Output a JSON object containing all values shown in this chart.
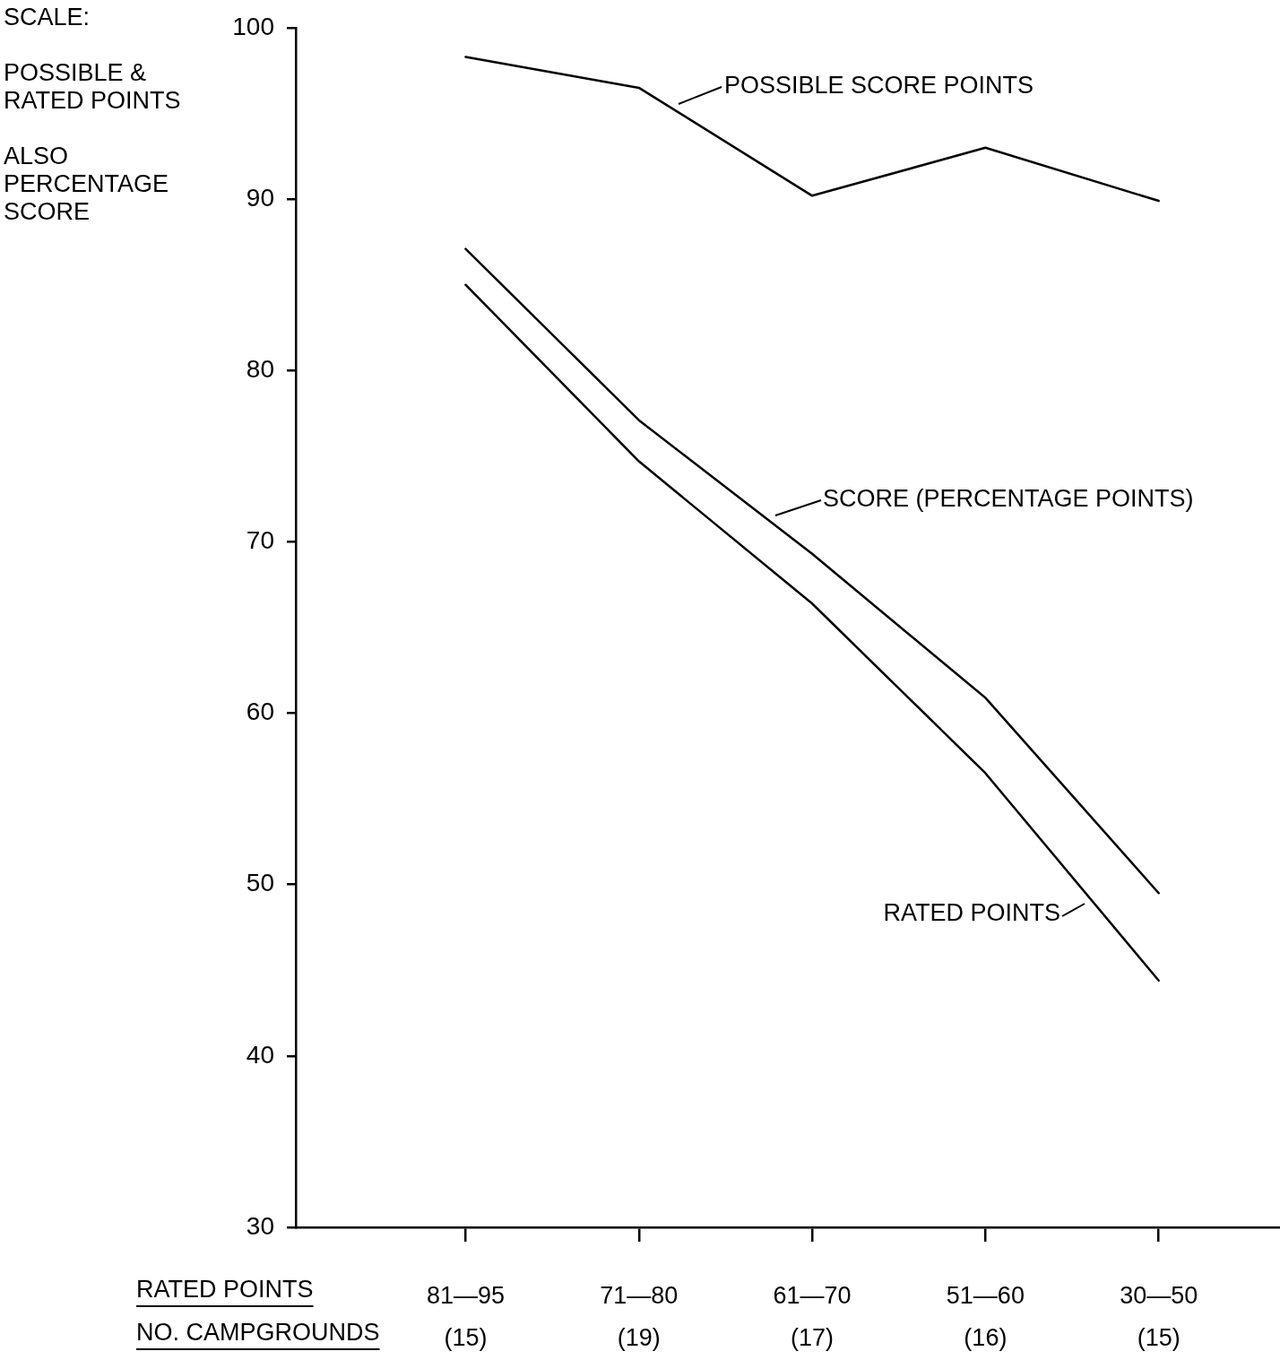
{
  "chart_data": {
    "type": "line",
    "ylabel": "SCALE:\n\nPOSSIBLE & RATED POINTS\n\nALSO PERCENTAGE SCORE",
    "xlabel": "RATED POINTS\nNO. CAMPGROUNDS",
    "categories": [
      "81—95\n(15)",
      "71—80\n(19)",
      "61—70\n(17)",
      "51—60\n(16)",
      "30—50\n(15)"
    ],
    "series": [
      {
        "name": "POSSIBLE SCORE POINTS",
        "color": "#000000",
        "values": [
          98.3,
          96.5,
          90.2,
          93.0,
          89.9
        ]
      },
      {
        "name": "SCORE (PERCENTAGE POINTS)",
        "color": "#000000",
        "values": [
          87.1,
          77.1,
          69.3,
          60.9,
          49.5
        ]
      },
      {
        "name": "RATED POINTS",
        "color": "#000000",
        "values": [
          85.0,
          74.7,
          66.4,
          56.5,
          44.4
        ]
      }
    ],
    "ylim": [
      30,
      100
    ],
    "yticks": [
      30,
      40,
      50,
      60,
      70,
      80,
      90,
      100
    ],
    "grid": false,
    "legend": "right",
    "marker": "none",
    "line_style": "solid"
  }
}
